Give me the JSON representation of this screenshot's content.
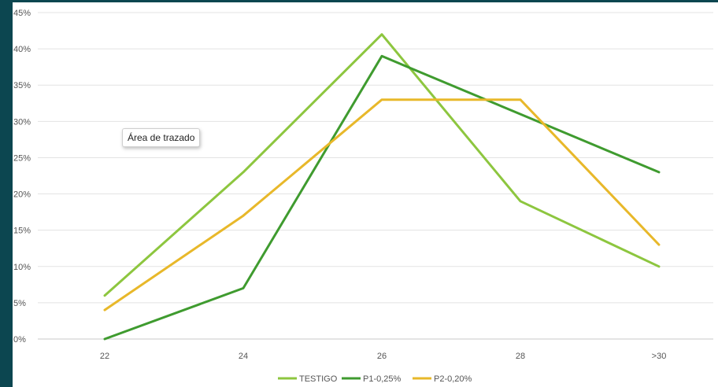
{
  "chart_data": {
    "type": "line",
    "title": "",
    "xlabel": "",
    "ylabel": "",
    "categories": [
      "22",
      "24",
      "26",
      "28",
      ">30"
    ],
    "ylim": [
      0,
      45
    ],
    "y_ticks": [
      "0%",
      "5%",
      "10%",
      "15%",
      "20%",
      "25%",
      "30%",
      "35%",
      "40%",
      "45%"
    ],
    "grid": "horizontal",
    "legend_position": "bottom",
    "series": [
      {
        "name": "TESTIGO",
        "color": "#8dc63f",
        "values": [
          6,
          23,
          42,
          19,
          10
        ]
      },
      {
        "name": "P1-0,25%",
        "color": "#3f9b2f",
        "values": [
          0,
          7,
          39,
          31,
          23
        ]
      },
      {
        "name": "P2-0,20%",
        "color": "#e8b82a",
        "values": [
          4,
          17,
          33,
          33,
          13
        ]
      }
    ]
  },
  "tooltip": {
    "text": "Área de trazado"
  }
}
